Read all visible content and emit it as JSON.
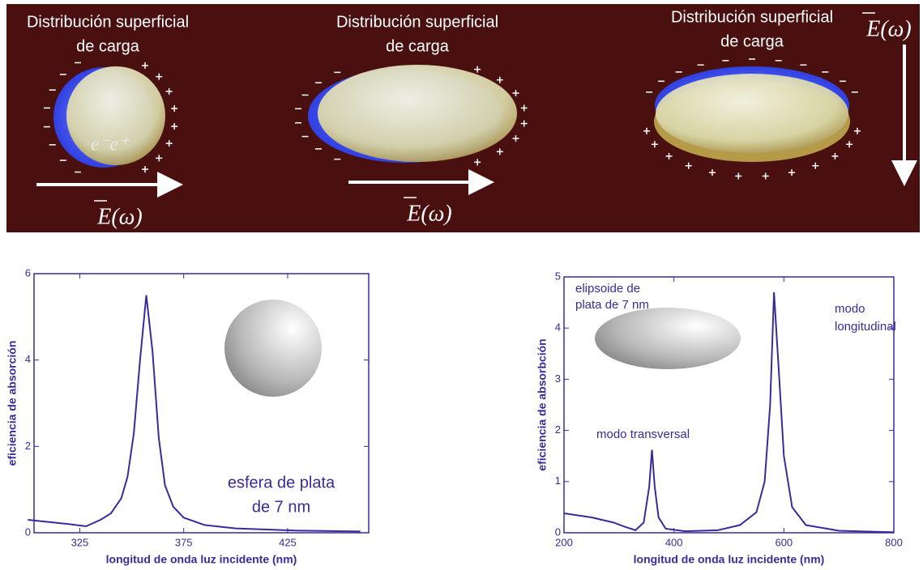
{
  "illustration": {
    "panels": [
      {
        "caption": [
          "Distribución superficial",
          "de carga"
        ],
        "field": "E(ω)",
        "charges": "e⁻e⁺"
      },
      {
        "caption": [
          "Distribución superficial",
          "de carga"
        ],
        "field": "E(ω)"
      },
      {
        "caption": [
          "Distribución superficial",
          "de carga"
        ],
        "field": "E(ω)"
      }
    ]
  },
  "chart_data": [
    {
      "type": "line",
      "color": "#3b2a9a",
      "x_label": "longitud de onda luz incidente (nm)",
      "y_label": "eficiencia de absorción",
      "annotations": [
        {
          "lines": [
            "esfera de plata",
            "de 7 nm"
          ]
        }
      ],
      "x": [
        300,
        320,
        328,
        335,
        340,
        345,
        348,
        351,
        354,
        357,
        360,
        363,
        366,
        370,
        375,
        385,
        400,
        430,
        460
      ],
      "values": [
        0.3,
        0.2,
        0.15,
        0.3,
        0.45,
        0.8,
        1.3,
        2.3,
        4,
        5.5,
        4.2,
        2.2,
        1.1,
        0.6,
        0.35,
        0.18,
        0.1,
        0.05,
        0.03
      ],
      "xlim": [
        303,
        464
      ],
      "xticks": [
        325,
        375,
        425
      ],
      "ylim": [
        0,
        6
      ],
      "yticks": [
        0,
        2,
        4,
        6
      ]
    },
    {
      "type": "line",
      "color": "#3b2a9a",
      "x_label": "longitud de onda luz incidente (nm)",
      "y_label": "eficiencia de absorbción",
      "annotations": [
        {
          "lines": [
            "elipsoide de",
            "plata de 7 nm"
          ]
        },
        {
          "lines": [
            "modo transversal"
          ]
        },
        {
          "lines": [
            "modo",
            "longitudinal"
          ]
        }
      ],
      "x": [
        200,
        250,
        290,
        310,
        330,
        345,
        355,
        360,
        365,
        372,
        385,
        420,
        480,
        520,
        550,
        565,
        575,
        582,
        590,
        600,
        615,
        640,
        700,
        800
      ],
      "values": [
        0.38,
        0.3,
        0.2,
        0.12,
        0.05,
        0.2,
        0.9,
        1.62,
        0.9,
        0.3,
        0.08,
        0.03,
        0.05,
        0.15,
        0.4,
        1.0,
        2.5,
        4.7,
        3.3,
        1.5,
        0.5,
        0.15,
        0.04,
        0.01
      ],
      "xlim": [
        200,
        800
      ],
      "xticks": [
        200,
        400,
        600,
        800
      ],
      "ylim": [
        0,
        5
      ],
      "yticks": [
        0,
        1,
        2,
        3,
        4,
        5
      ]
    }
  ]
}
